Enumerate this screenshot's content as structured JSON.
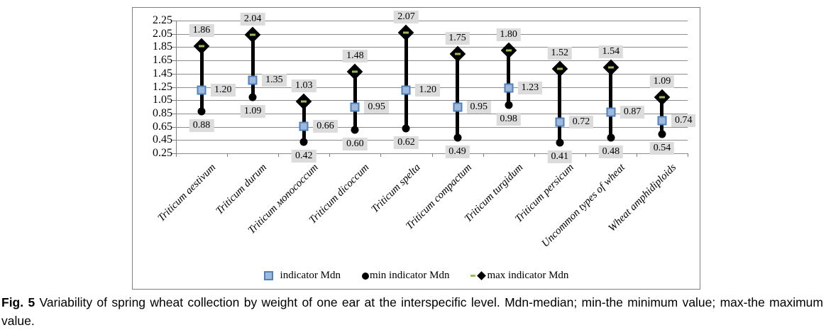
{
  "figure": {
    "caption_label": "Fig. 5",
    "caption_text": "Variability of spring wheat collection by weight of one ear at the interspecific level. Mdn-median; min-the minimum value; max-the maximum value."
  },
  "legend": {
    "position": "bottom-center",
    "items": [
      {
        "marker": "blue-square",
        "label": "indicator Mdn"
      },
      {
        "marker": "black-circle",
        "label": "min indicator Mdn"
      },
      {
        "marker": "black-diamond-with-olive-dash",
        "label": "max indicator Mdn"
      }
    ]
  },
  "colors": {
    "median_fill": "#9EB9DB",
    "median_border": "#4F81BD",
    "marker_black": "#000000",
    "max_dash_olive": "#9BBB59",
    "label_bg": "#DCDCDC",
    "gridline": "#8C8C8C",
    "axis": "#7F7F7F",
    "chart_border": "#7F7F7F",
    "text": "#000000"
  },
  "chart_data": {
    "type": "scatter",
    "subtype": "high-low range sticks with min/median/max markers (stock-style)",
    "title": "",
    "xlabel": "",
    "ylabel": "",
    "categories": [
      "Triticum aestivum",
      "Triticum durum",
      "Triticum мonococcum",
      "Triticum dicoccum",
      "Triticum spelta",
      "Triticum compactum",
      "Triticum turgidum",
      "Triticum persicum",
      "Uncommon types of wheat",
      "Wheat amphidiploids"
    ],
    "series": [
      {
        "name": "indicator Mdn",
        "marker": "square",
        "values": [
          1.2,
          1.35,
          0.66,
          0.95,
          1.2,
          0.95,
          1.23,
          0.72,
          0.87,
          0.74
        ]
      },
      {
        "name": "min indicator Mdn",
        "marker": "circle",
        "values": [
          0.88,
          1.09,
          0.42,
          0.6,
          0.62,
          0.49,
          0.98,
          0.41,
          0.48,
          0.54
        ]
      },
      {
        "name": "max indicator Mdn",
        "marker": "diamond",
        "values": [
          1.86,
          2.04,
          1.03,
          1.48,
          2.07,
          1.75,
          1.8,
          1.52,
          1.54,
          1.09
        ]
      }
    ],
    "ylim": [
      0.25,
      2.25
    ],
    "ytick_step": 0.2,
    "yticks": [
      "2.25",
      "2.05",
      "1.85",
      "1.65",
      "1.45",
      "1.25",
      "1.05",
      "0.85",
      "0.65",
      "0.45",
      "0.25"
    ],
    "grid": true,
    "legend_position": "bottom",
    "data_labels": "every point labeled to 2 decimals on gray background; max above, min below, median right"
  }
}
